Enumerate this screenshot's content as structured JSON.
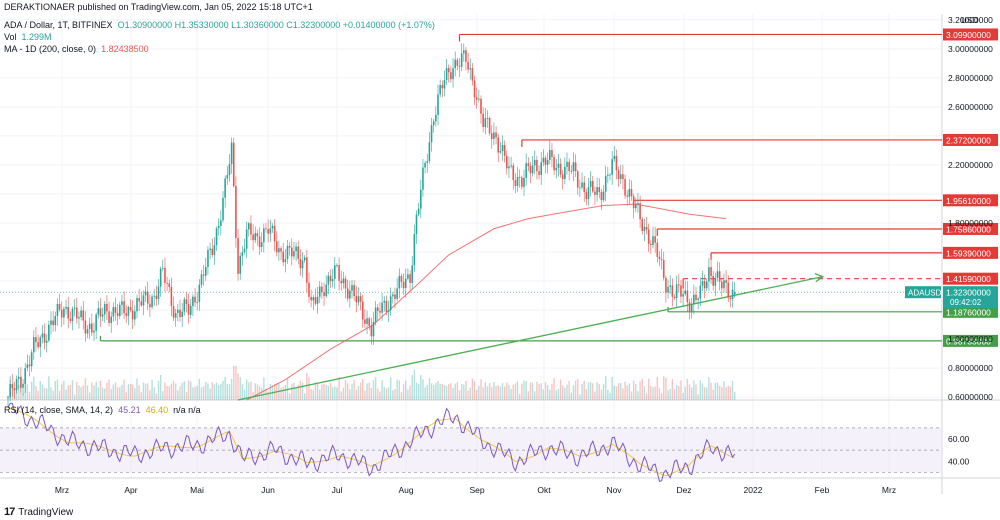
{
  "header": "DERAKTIONAER published on TradingView.com, Jan 05, 2022 15:18 UTC+1",
  "legend": {
    "symbol": "ADA / Dollar, 1T, BITFINEX",
    "ohlc": "O1.30900000  H1.35330000  L1.30360000  C1.32300000  +0.01400000 (+1.07%)",
    "vol_label": "Vol",
    "vol_value": "1.299M",
    "ma_label": "MA - 1D (200, close, 0)",
    "ma_value": "1.82438500",
    "rsi_label": "RSI (14, close, SMA, 14, 2)",
    "rsi_value": "45.21",
    "rsi_sma": "46.40",
    "rsi_na": "n/a  n/a"
  },
  "currency": "USD",
  "footer": {
    "brand": "TradingView"
  },
  "colors": {
    "up": "#26a69a",
    "down": "#ef5350",
    "ma": "#ef5350",
    "resistance": "#e53935",
    "support": "#43a047",
    "trend": "#4caf50",
    "rsi": "#7e57c2",
    "rsi_sma": "#f0c94b",
    "rsi_band": "#ede7f6"
  },
  "chart_data": {
    "type": "candlestick",
    "price_axis": {
      "ticks": [
        "3.20000000",
        "3.00000000",
        "2.80000000",
        "2.60000000",
        "2.40000000",
        "2.20000000",
        "2.00000000",
        "1.80000000",
        "1.60000000",
        "1.40000000",
        "1.20000000",
        "1.00000000",
        "0.80000000",
        "0.60000000"
      ],
      "ylim": [
        0.58,
        3.24
      ]
    },
    "rsi_axis": {
      "ticks": [
        "60.00",
        "40.00"
      ],
      "ylim": [
        25,
        95
      ],
      "bands": [
        30,
        70
      ]
    },
    "x_axis": [
      "Mrz",
      "Apr",
      "Mai",
      "Jun",
      "Jul",
      "Aug",
      "Sep",
      "Okt",
      "Nov",
      "Dez",
      "2022",
      "Feb",
      "Mrz"
    ],
    "last_price": {
      "symbol": "ADAUSD",
      "price": "1.32300000",
      "countdown": "09:42:02"
    },
    "levels": [
      {
        "label": "3.09900000",
        "value": 3.099,
        "type": "resistance",
        "from": "Aug 30"
      },
      {
        "label": "2.37200000",
        "value": 2.372,
        "type": "resistance",
        "from": "Sep 28"
      },
      {
        "label": "1.95610000",
        "value": 1.9561,
        "type": "resistance",
        "from": "Nov 19"
      },
      {
        "label": "1.75860000",
        "value": 1.7586,
        "type": "resistance",
        "from": "Nov 30"
      },
      {
        "label": "1.59390000",
        "value": 1.5939,
        "type": "resistance",
        "from": "Dec 25"
      },
      {
        "label": "1.41590000",
        "value": 1.4159,
        "type": "resistance-dashed",
        "from": "Dec 12"
      },
      {
        "label": "1.18760000",
        "value": 1.1876,
        "type": "support",
        "from": "Dec 5"
      },
      {
        "label": "0.98733000",
        "value": 0.98733,
        "type": "support",
        "from": "Mar 16"
      }
    ],
    "trendline": {
      "from": [
        "May 19",
        0.58
      ],
      "to": [
        "Feb 15",
        1.43
      ],
      "arrow": true
    },
    "moving_average_200": {
      "points": [
        [
          "May 23",
          0.58
        ],
        [
          "Jun 10",
          0.72
        ],
        [
          "Jul 1",
          0.93
        ],
        [
          "Jul 21",
          1.1
        ],
        [
          "Aug 10",
          1.37
        ],
        [
          "Aug 25",
          1.58
        ],
        [
          "Sep 15",
          1.76
        ],
        [
          "Oct 1",
          1.83
        ],
        [
          "Oct 20",
          1.88
        ],
        [
          "Nov 5",
          1.92
        ],
        [
          "Nov 20",
          1.93
        ],
        [
          "Dec 1",
          1.9
        ],
        [
          "Dec 15",
          1.86
        ],
        [
          "Jan 1",
          1.83
        ]
      ]
    },
    "price_path": [
      [
        "Feb 1",
        0.6
      ],
      [
        "Feb 7",
        0.72
      ],
      [
        "Feb 13",
        0.93
      ],
      [
        "Feb 20",
        1.08
      ],
      [
        "Feb 27",
        1.22
      ],
      [
        "Mar 5",
        1.15
      ],
      [
        "Mar 12",
        1.08
      ],
      [
        "Mar 18",
        1.2
      ],
      [
        "Mar 25",
        1.18
      ],
      [
        "Apr 1",
        1.22
      ],
      [
        "Apr 10",
        1.3
      ],
      [
        "Apr 14",
        1.45
      ],
      [
        "Apr 20",
        1.18
      ],
      [
        "Apr 26",
        1.2
      ],
      [
        "May 2",
        1.4
      ],
      [
        "May 8",
        1.68
      ],
      [
        "May 12",
        1.95
      ],
      [
        "May 16",
        2.3
      ],
      [
        "May 19",
        1.5
      ],
      [
        "May 23",
        1.72
      ],
      [
        "May 28",
        1.7
      ],
      [
        "Jun 2",
        1.75
      ],
      [
        "Jun 8",
        1.6
      ],
      [
        "Jun 14",
        1.58
      ],
      [
        "Jun 19",
        1.55
      ],
      [
        "Jun 22",
        1.2
      ],
      [
        "Jun 28",
        1.38
      ],
      [
        "Jul 4",
        1.45
      ],
      [
        "Jul 10",
        1.34
      ],
      [
        "Jul 20",
        1.08
      ],
      [
        "Jul 24",
        1.2
      ],
      [
        "Aug 1",
        1.33
      ],
      [
        "Aug 7",
        1.45
      ],
      [
        "Aug 10",
        1.82
      ],
      [
        "Aug 14",
        2.2
      ],
      [
        "Aug 18",
        2.55
      ],
      [
        "Aug 23",
        2.78
      ],
      [
        "Aug 27",
        2.9
      ],
      [
        "Sep 2",
        2.92
      ],
      [
        "Sep 6",
        2.75
      ],
      [
        "Sep 10",
        2.48
      ],
      [
        "Sep 16",
        2.4
      ],
      [
        "Sep 22",
        2.15
      ],
      [
        "Sep 28",
        2.1
      ],
      [
        "Oct 4",
        2.2
      ],
      [
        "Oct 10",
        2.23
      ],
      [
        "Oct 16",
        2.18
      ],
      [
        "Oct 22",
        2.15
      ],
      [
        "Oct 28",
        2.02
      ],
      [
        "Nov 3",
        2.0
      ],
      [
        "Nov 9",
        2.2
      ],
      [
        "Nov 14",
        2.1
      ],
      [
        "Nov 19",
        1.92
      ],
      [
        "Nov 25",
        1.75
      ],
      [
        "Nov 30",
        1.58
      ],
      [
        "Dec 4",
        1.4
      ],
      [
        "Dec 8",
        1.3
      ],
      [
        "Dec 12",
        1.32
      ],
      [
        "Dec 16",
        1.25
      ],
      [
        "Dec 20",
        1.3
      ],
      [
        "Dec 24",
        1.48
      ],
      [
        "Dec 27",
        1.42
      ],
      [
        "Dec 30",
        1.36
      ],
      [
        "Jan 5",
        1.323
      ]
    ],
    "rsi_path": [
      [
        "Feb 1",
        88
      ],
      [
        "Feb 15",
        75
      ],
      [
        "Mar 1",
        58
      ],
      [
        "Mar 15",
        52
      ],
      [
        "Apr 1",
        46
      ],
      [
        "Apr 15",
        52
      ],
      [
        "May 1",
        55
      ],
      [
        "May 15",
        65
      ],
      [
        "May 21",
        42
      ],
      [
        "Jun 5",
        50
      ],
      [
        "Jun 20",
        38
      ],
      [
        "Jul 5",
        46
      ],
      [
        "Jul 20",
        34
      ],
      [
        "Aug 5",
        55
      ],
      [
        "Aug 20",
        75
      ],
      [
        "Aug 28",
        80
      ],
      [
        "Sep 10",
        58
      ],
      [
        "Sep 25",
        40
      ],
      [
        "Oct 10",
        52
      ],
      [
        "Oct 25",
        44
      ],
      [
        "Nov 9",
        56
      ],
      [
        "Nov 22",
        36
      ],
      [
        "Dec 4",
        29
      ],
      [
        "Dec 15",
        36
      ],
      [
        "Dec 25",
        53
      ],
      [
        "Jan 5",
        45
      ]
    ],
    "volume_note": "volume bars along bottom of price pane"
  }
}
